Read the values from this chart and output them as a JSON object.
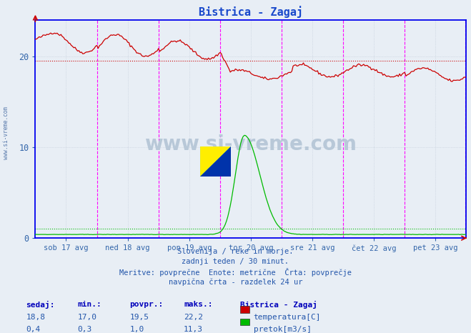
{
  "title": "Bistrica - Zagaj",
  "title_color": "#1a4acc",
  "bg_color": "#e8eef5",
  "plot_bg_color": "#e8eef5",
  "axes_color": "#0000ee",
  "grid_color": "#c0cad8",
  "vline_color": "#ff00ff",
  "temp_color": "#cc0000",
  "flow_color": "#00bb00",
  "avg_temp_color": "#cc0000",
  "avg_flow_color": "#00bb00",
  "x_tick_labels": [
    "sob 17 avg",
    "ned 18 avg",
    "pon 19 avg",
    "tor 20 avg",
    "sre 21 avg",
    "čet 22 avg",
    "pet 23 avg"
  ],
  "y_ticks": [
    0,
    10,
    20
  ],
  "ylim": [
    0,
    24
  ],
  "xlim": [
    0,
    336
  ],
  "avg_temp": 19.5,
  "avg_flow": 1.0,
  "watermark_text": "www.si-vreme.com",
  "footer_lines": [
    "Slovenija / reke in morje.",
    "zadnji teden / 30 minut.",
    "Meritve: povprečne  Enote: metrične  Črta: povprečje",
    "navpična črta - razdelek 24 ur"
  ],
  "table_headers": [
    "sedaj:",
    "min.:",
    "povpr.:",
    "maks.:"
  ],
  "table_data": [
    [
      "18,8",
      "17,0",
      "19,5",
      "22,2"
    ],
    [
      "0,4",
      "0,3",
      "1,0",
      "11,3"
    ]
  ],
  "legend_title": "Bistrica - Zagaj",
  "legend_items": [
    {
      "label": "temperatura[C]",
      "color": "#cc0000"
    },
    {
      "label": "pretok[m3/s]",
      "color": "#00bb00"
    }
  ],
  "n_points": 337
}
